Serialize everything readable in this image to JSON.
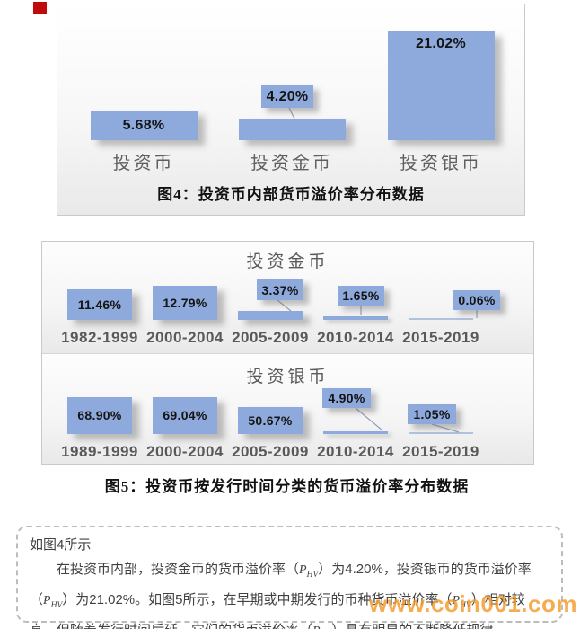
{
  "colors": {
    "bar_blue": "#8EAADC",
    "bar_hairline": "#B3C1E0",
    "watermark_orange": "#F49828",
    "marker_red": "#BF0B0B"
  },
  "chart_data": [
    {
      "id": "fig4",
      "type": "bar",
      "title": "图4：投资币内部货币溢价率分布数据",
      "categories": [
        "投资币",
        "投资金币",
        "投资银币"
      ],
      "values": [
        5.68,
        4.2,
        21.02
      ],
      "labels": [
        "5.68%",
        "4.20%",
        "21.02%"
      ],
      "label_placement": [
        "inside",
        "callout",
        "inside-top"
      ],
      "bar_color": "#8EAADC",
      "ylim": [
        0,
        22
      ],
      "grid": "off",
      "legend": "none"
    },
    {
      "id": "fig5-gold",
      "type": "bar",
      "title": "投资金币",
      "figure_caption": "图5：投资币按发行时间分类的货币溢价率分布数据",
      "categories": [
        "1982-1999",
        "2000-2004",
        "2005-2009",
        "2010-2014",
        "2015-2019"
      ],
      "values": [
        11.46,
        12.79,
        3.37,
        1.65,
        0.06
      ],
      "labels": [
        "11.46%",
        "12.79%",
        "3.37%",
        "1.65%",
        "0.06%"
      ],
      "label_placement": [
        "inside",
        "inside",
        "callout",
        "callout",
        "callout"
      ],
      "bar_color": "#8EAADC",
      "ylim": [
        0,
        14
      ],
      "grid": "off",
      "legend": "none"
    },
    {
      "id": "fig5-silver",
      "type": "bar",
      "title": "投资银币",
      "categories": [
        "1989-1999",
        "2000-2004",
        "2005-2009",
        "2010-2014",
        "2015-2019"
      ],
      "values": [
        68.9,
        69.04,
        50.67,
        4.9,
        1.05
      ],
      "labels": [
        "68.90%",
        "69.04%",
        "50.67%",
        "4.90%",
        "1.05%"
      ],
      "label_placement": [
        "inside",
        "inside",
        "inside",
        "callout",
        "callout"
      ],
      "bar_color": "#8EAADC",
      "ylim": [
        0,
        75
      ],
      "grid": "off",
      "legend": "none"
    }
  ],
  "note": {
    "heading": "如图4所示",
    "formula": {
      "base": "P",
      "sub": "HV"
    },
    "paragraph": [
      {
        "t": "在投资币内部，投资金币的货币溢价率（"
      },
      {
        "f": true
      },
      {
        "t": "）为4.20%，投资银币的货币溢价率（"
      },
      {
        "f": true
      },
      {
        "t": "）为21.02%。如图5所示，在早期或中期发行的币种货币溢价率（"
      },
      {
        "f": true
      },
      {
        "t": "）相对较高，但随着发行时间后延，它们的货币溢价率（"
      },
      {
        "f": true
      },
      {
        "t": "）具有明显的不断降低规律。"
      }
    ]
  },
  "watermark": "www.coin001.com"
}
